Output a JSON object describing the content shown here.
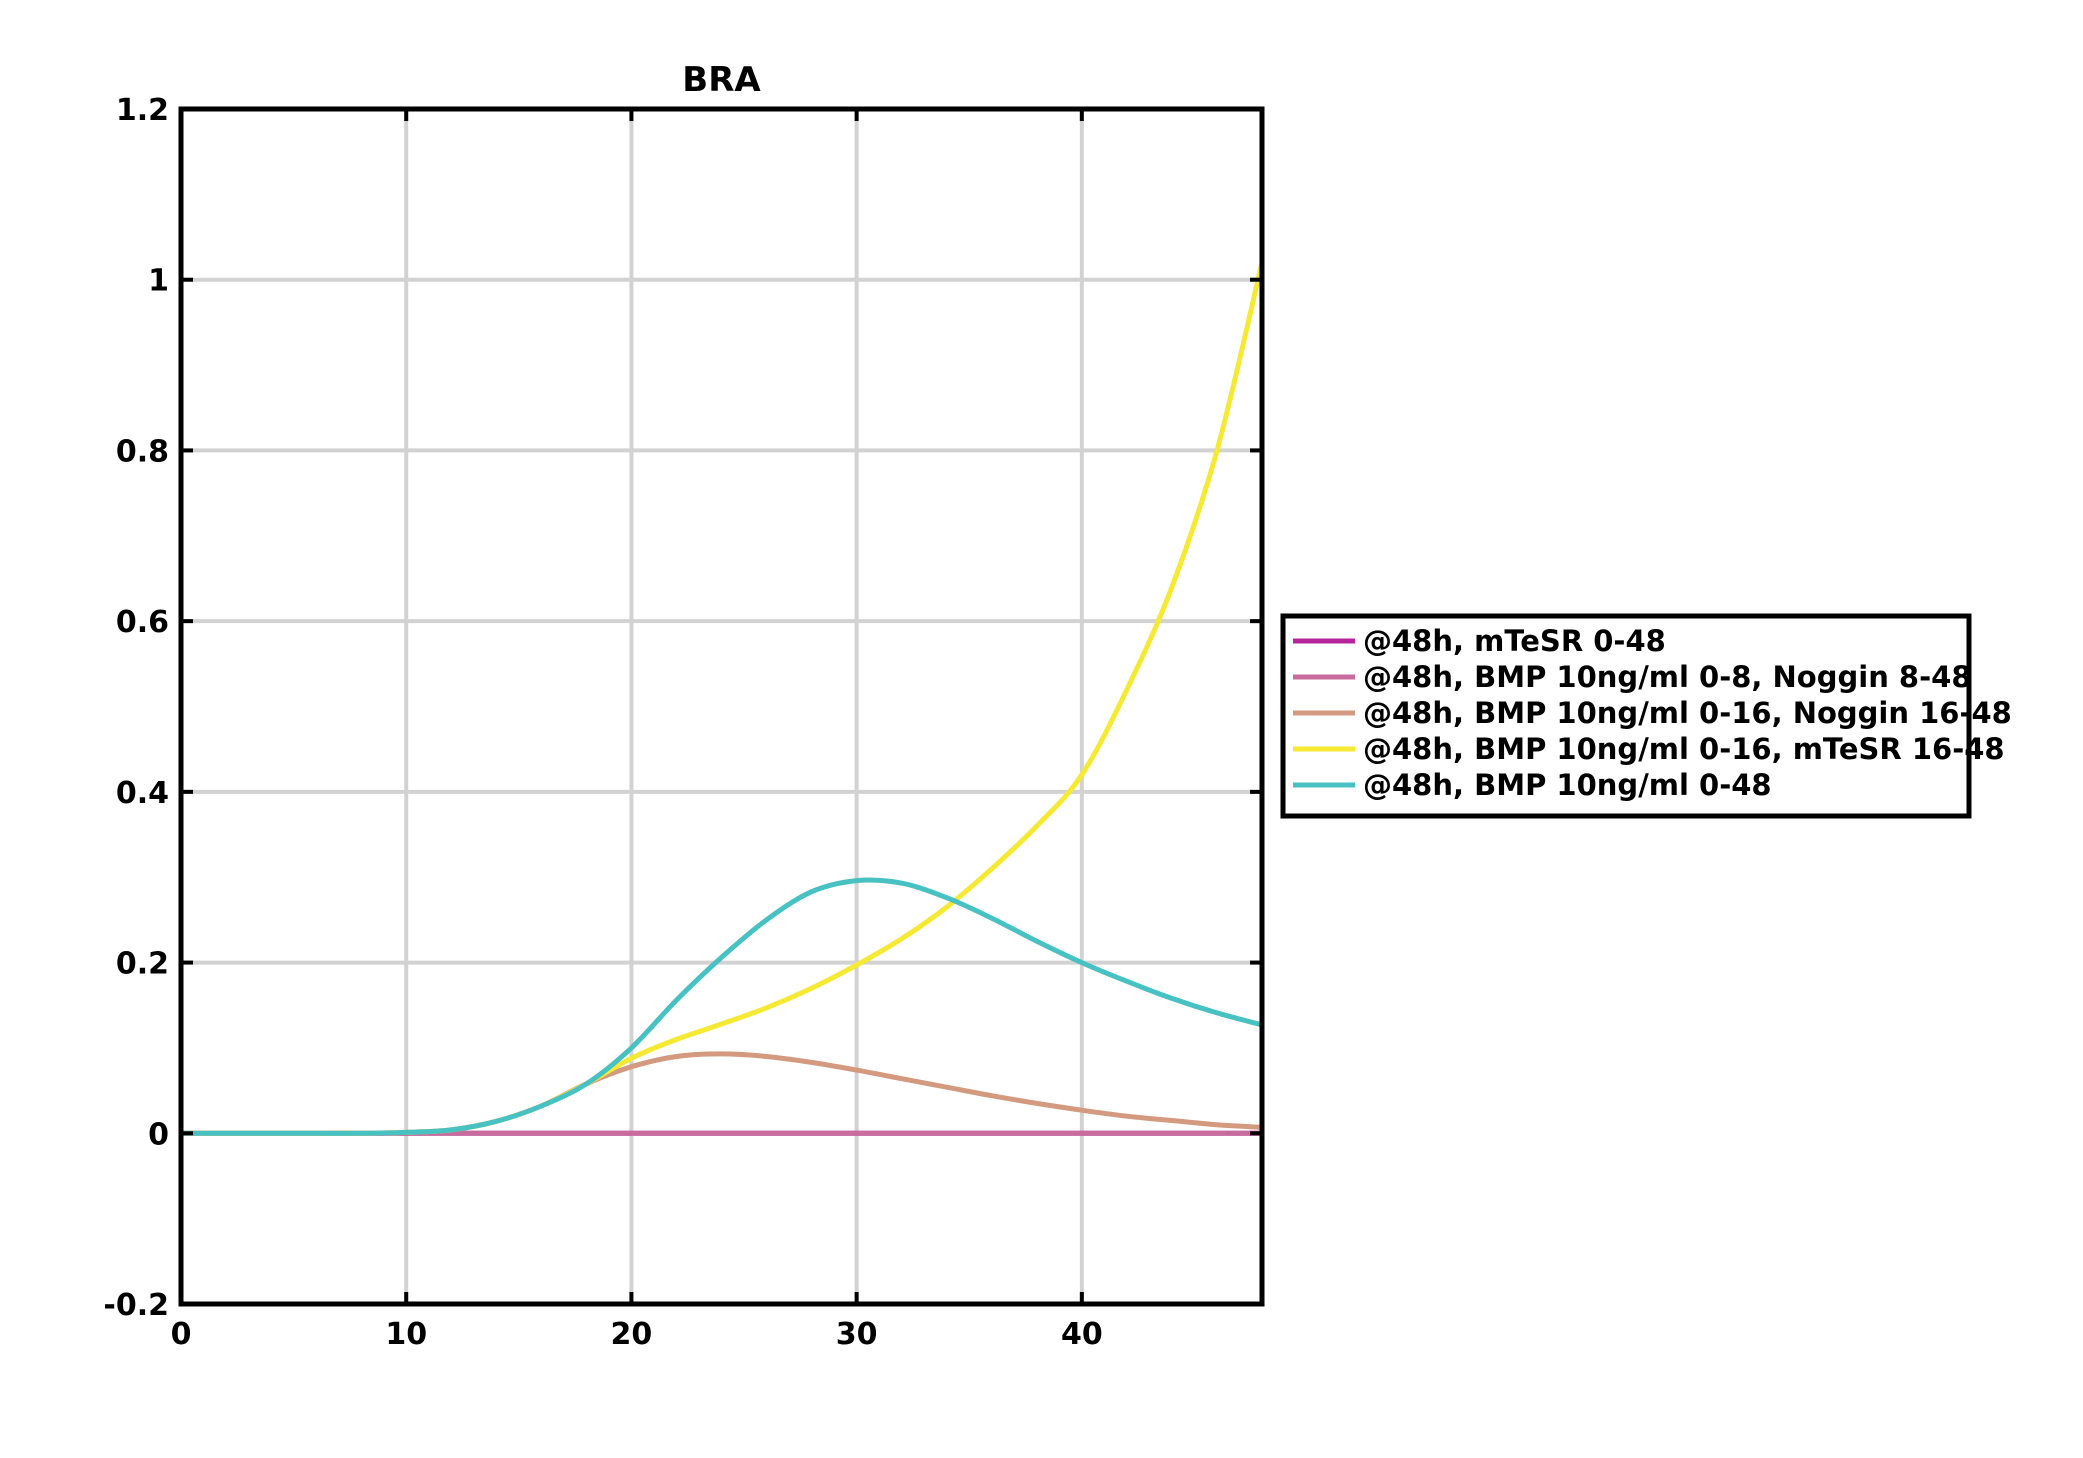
{
  "chart_data": {
    "type": "line",
    "title": "BRA",
    "xlabel": "",
    "ylabel": "",
    "xlim": [
      0,
      48
    ],
    "ylim": [
      -0.2,
      1.2
    ],
    "xticks": [
      0,
      10,
      20,
      30,
      40
    ],
    "xtick_labels": [
      "0",
      "10",
      "20",
      "30",
      "40"
    ],
    "yticks": [
      -0.2,
      0,
      0.2,
      0.4,
      0.6,
      0.8,
      1,
      1.2
    ],
    "ytick_labels": [
      "-0.2",
      "0",
      "0.2",
      "0.4",
      "0.6",
      "0.8",
      "1",
      "1.2"
    ],
    "grid": true,
    "legend_position": "outside-right",
    "x": [
      0,
      2,
      4,
      6,
      8,
      10,
      12,
      14,
      16,
      18,
      20,
      22,
      24,
      26,
      28,
      30,
      32,
      34,
      36,
      38,
      40,
      42,
      44,
      46,
      48
    ],
    "series": [
      {
        "name": "@48h, mTeSR 0-48",
        "color": "#b5249b",
        "values": [
          0,
          0,
          0,
          0,
          0,
          0,
          0,
          0,
          0,
          0,
          0,
          0,
          0,
          0,
          0,
          0,
          0,
          0,
          0,
          0,
          0,
          0,
          0,
          0,
          0
        ]
      },
      {
        "name": "@48h, BMP 10ng/ml 0-8, Noggin 8-48",
        "color": "#c86c9e",
        "values": [
          0,
          0,
          0,
          0,
          0,
          0,
          0,
          0,
          0,
          0,
          0,
          0,
          0,
          0,
          0,
          0,
          0,
          0,
          0,
          0,
          0,
          0,
          0,
          0,
          0
        ]
      },
      {
        "name": "@48h, BMP 10ng/ml 0-16, Noggin 16-48",
        "color": "#d39a80",
        "values": [
          0,
          0,
          0,
          0,
          0,
          0.001,
          0.004,
          0.014,
          0.032,
          0.058,
          0.078,
          0.09,
          0.093,
          0.09,
          0.083,
          0.074,
          0.064,
          0.054,
          0.044,
          0.035,
          0.027,
          0.02,
          0.015,
          0.01,
          0.007
        ]
      },
      {
        "name": "@48h, BMP 10ng/ml 0-16, mTeSR 16-48",
        "color": "#f5e933",
        "values": [
          0,
          0,
          0,
          0,
          0,
          0.001,
          0.004,
          0.014,
          0.032,
          0.058,
          0.088,
          0.11,
          0.128,
          0.147,
          0.17,
          0.197,
          0.228,
          0.265,
          0.31,
          0.36,
          0.42,
          0.52,
          0.64,
          0.8,
          1.02
        ]
      },
      {
        "name": "@48h, BMP 10ng/ml 0-48",
        "color": "#48c1c3",
        "values": [
          0,
          0,
          0,
          0,
          0,
          0.001,
          0.004,
          0.014,
          0.032,
          0.058,
          0.1,
          0.156,
          0.206,
          0.25,
          0.283,
          0.296,
          0.293,
          0.276,
          0.252,
          0.225,
          0.2,
          0.178,
          0.158,
          0.141,
          0.127
        ]
      }
    ]
  }
}
